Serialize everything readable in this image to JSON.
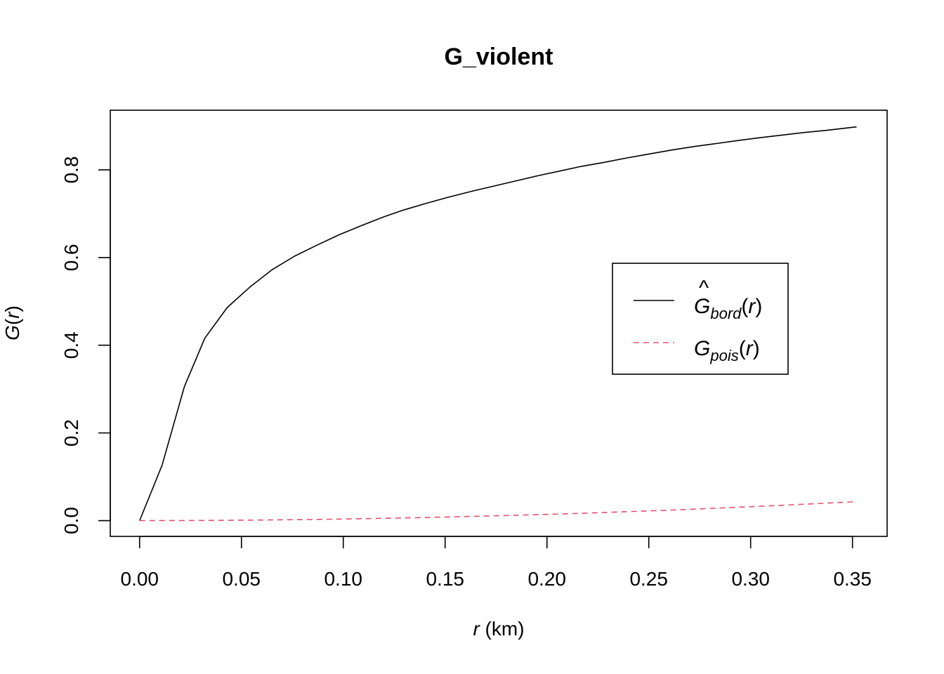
{
  "chart_data": {
    "type": "line",
    "title": "G_violent",
    "xlabel": {
      "var": "r",
      "unit": " (km)"
    },
    "ylabel": {
      "func": "G",
      "arg": "r"
    },
    "xlim": [
      -0.0144,
      0.367
    ],
    "ylim": [
      -0.036,
      0.936
    ],
    "x_ticks": [
      0.0,
      0.05,
      0.1,
      0.15,
      0.2,
      0.25,
      0.3,
      0.35
    ],
    "x_tick_labels": [
      "0.00",
      "0.05",
      "0.10",
      "0.15",
      "0.20",
      "0.25",
      "0.30",
      "0.35"
    ],
    "y_ticks": [
      0.0,
      0.2,
      0.4,
      0.6,
      0.8
    ],
    "y_tick_labels": [
      "0.0",
      "0.2",
      "0.4",
      "0.6",
      "0.8"
    ],
    "grid": false,
    "legend_position": "center-right",
    "series": [
      {
        "name": "Ĝ_bord(r)",
        "label": {
          "base": "G",
          "hat": "^",
          "sub": "bord",
          "arg": "r"
        },
        "color": "#000000",
        "style": "solid",
        "x": [
          0,
          0.011,
          0.022,
          0.032,
          0.043,
          0.054,
          0.065,
          0.076,
          0.087,
          0.098,
          0.109,
          0.12,
          0.13,
          0.141,
          0.152,
          0.163,
          0.174,
          0.185,
          0.196,
          0.207,
          0.217,
          0.228,
          0.239,
          0.25,
          0.261,
          0.272,
          0.283,
          0.294,
          0.304,
          0.315,
          0.326,
          0.337,
          0.352
        ],
        "y": [
          0,
          0.126,
          0.306,
          0.416,
          0.486,
          0.532,
          0.572,
          0.603,
          0.628,
          0.652,
          0.673,
          0.693,
          0.709,
          0.724,
          0.738,
          0.751,
          0.763,
          0.775,
          0.787,
          0.798,
          0.808,
          0.817,
          0.827,
          0.836,
          0.845,
          0.853,
          0.86,
          0.867,
          0.873,
          0.879,
          0.885,
          0.89,
          0.898
        ]
      },
      {
        "name": "G_pois(r)",
        "label": {
          "base": "G",
          "hat": "",
          "sub": "pois",
          "arg": "r"
        },
        "color": "#DF536B",
        "style": "dashed",
        "x": [
          0,
          0.022,
          0.044,
          0.066,
          0.088,
          0.11,
          0.132,
          0.154,
          0.176,
          0.198,
          0.22,
          0.242,
          0.264,
          0.286,
          0.308,
          0.33,
          0.352
        ],
        "y": [
          0,
          0.0002,
          0.0007,
          0.0016,
          0.0028,
          0.0044,
          0.0063,
          0.0085,
          0.0111,
          0.014,
          0.0172,
          0.0208,
          0.0246,
          0.0288,
          0.0333,
          0.0382,
          0.0433
        ]
      }
    ]
  }
}
